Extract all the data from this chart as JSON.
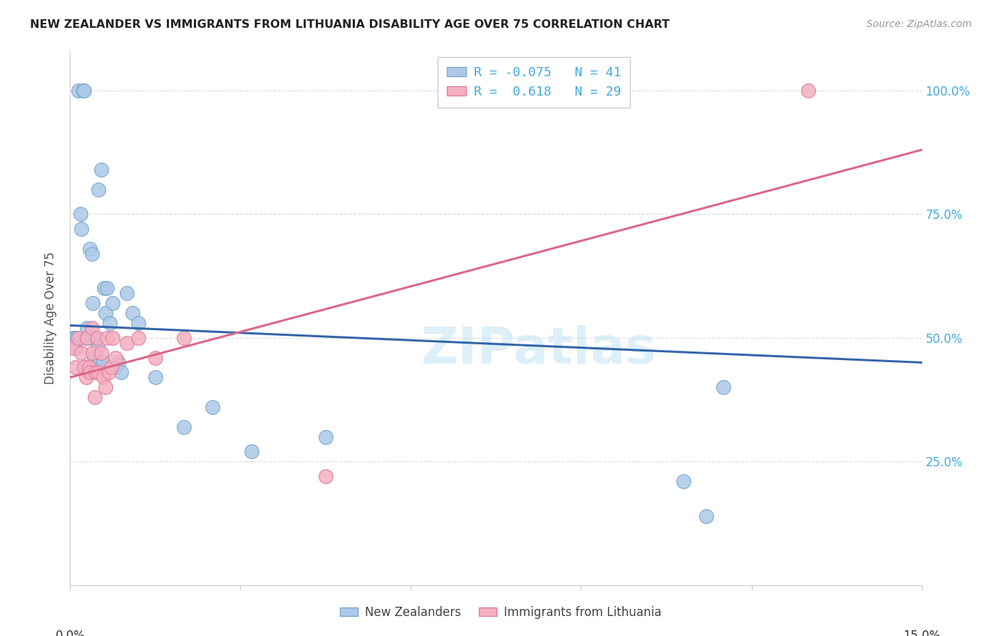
{
  "title": "NEW ZEALANDER VS IMMIGRANTS FROM LITHUANIA DISABILITY AGE OVER 75 CORRELATION CHART",
  "source": "Source: ZipAtlas.com",
  "ylabel": "Disability Age Over 75",
  "nz_R": -0.075,
  "nz_N": 41,
  "lith_R": 0.618,
  "lith_N": 29,
  "nz_color": "#adc8e8",
  "nz_edge_color": "#7aaad0",
  "lith_color": "#f5afc0",
  "lith_edge_color": "#e080a0",
  "nz_line_color": "#3366aa",
  "lith_line_color": "#dd6688",
  "watermark_color": "#cce8f5",
  "title_color": "#222222",
  "source_color": "#999999",
  "ylabel_color": "#555555",
  "ytick_color": "#44aadd",
  "grid_color": "#dddddd",
  "xlim_min": 0.0,
  "xlim_max": 15.0,
  "ylim_min": 0.0,
  "ylim_max": 108.0,
  "nz_line_x0": 0.0,
  "nz_line_y0": 52.5,
  "nz_line_x1": 15.0,
  "nz_line_y1": 45.0,
  "lith_line_x0": 0.0,
  "lith_line_y0": 42.0,
  "lith_line_x1": 15.0,
  "lith_line_y1": 88.0,
  "nz_x": [
    0.05,
    0.08,
    0.1,
    0.12,
    0.15,
    0.18,
    0.2,
    0.22,
    0.25,
    0.28,
    0.3,
    0.32,
    0.35,
    0.38,
    0.4,
    0.42,
    0.45,
    0.48,
    0.5,
    0.52,
    0.55,
    0.58,
    0.6,
    0.62,
    0.65,
    0.7,
    0.75,
    0.8,
    0.85,
    0.9,
    1.0,
    1.1,
    1.2,
    1.5,
    2.0,
    2.5,
    3.2,
    4.5,
    10.8,
    11.2,
    11.5
  ],
  "nz_y": [
    50.0,
    50.0,
    48.0,
    50.0,
    100.0,
    75.0,
    72.0,
    100.0,
    100.0,
    50.0,
    52.0,
    50.0,
    68.0,
    67.0,
    57.0,
    46.0,
    50.0,
    48.0,
    80.0,
    45.0,
    84.0,
    45.0,
    60.0,
    55.0,
    60.0,
    53.0,
    57.0,
    44.0,
    45.0,
    43.0,
    59.0,
    55.0,
    53.0,
    42.0,
    32.0,
    36.0,
    27.0,
    30.0,
    21.0,
    14.0,
    40.0
  ],
  "lith_x": [
    0.05,
    0.1,
    0.15,
    0.2,
    0.25,
    0.28,
    0.3,
    0.33,
    0.35,
    0.38,
    0.4,
    0.43,
    0.45,
    0.48,
    0.5,
    0.55,
    0.58,
    0.62,
    0.65,
    0.68,
    0.72,
    0.75,
    0.8,
    1.0,
    1.2,
    1.5,
    2.0,
    4.5,
    13.0
  ],
  "lith_y": [
    48.0,
    44.0,
    50.0,
    47.0,
    44.0,
    42.0,
    50.0,
    44.0,
    43.0,
    52.0,
    47.0,
    38.0,
    43.0,
    50.0,
    43.0,
    47.0,
    42.0,
    40.0,
    50.0,
    43.0,
    44.0,
    50.0,
    46.0,
    49.0,
    50.0,
    46.0,
    50.0,
    22.0,
    100.0
  ]
}
